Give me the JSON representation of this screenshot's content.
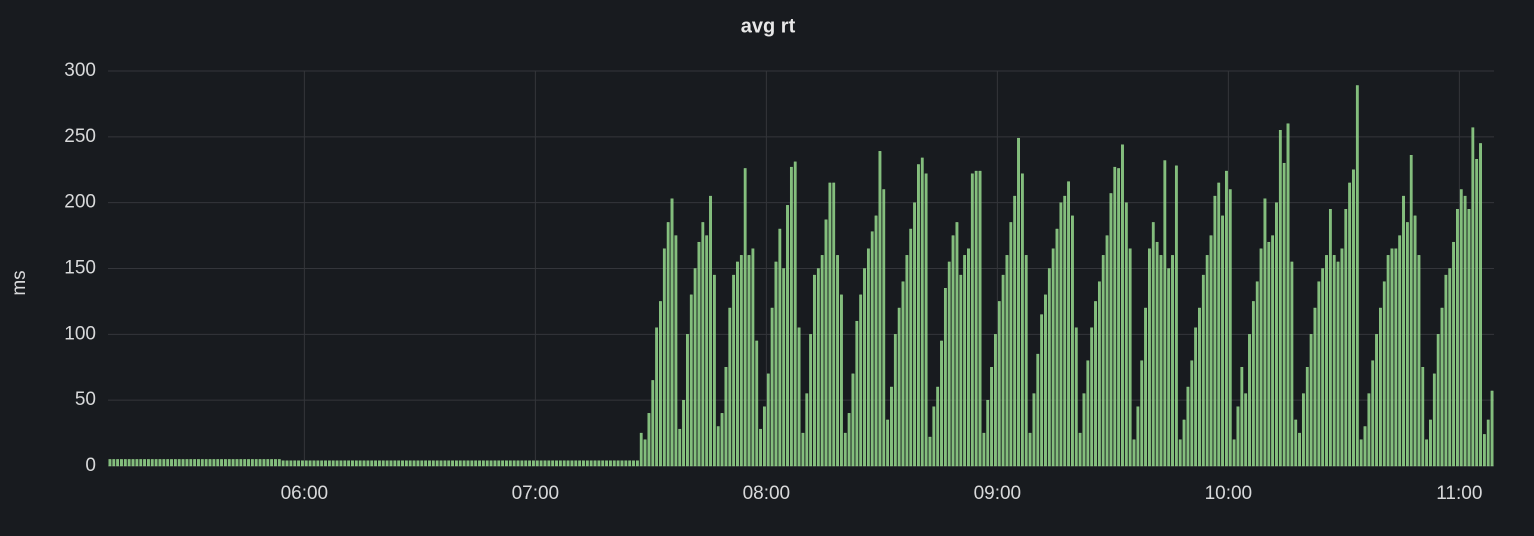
{
  "chart_data": {
    "type": "bar",
    "title": "avg rt",
    "y_label": "ms",
    "color": "#96d98d",
    "grid": true,
    "xlim": [
      "05:09",
      "11:09"
    ],
    "xticks": [
      "06:00",
      "07:00",
      "08:00",
      "09:00",
      "10:00",
      "11:00"
    ],
    "ylim": [
      0,
      300
    ],
    "yticks": [
      0,
      50,
      100,
      150,
      200,
      250,
      300
    ],
    "x": [
      "05:09",
      "05:10",
      "05:11",
      "05:12",
      "05:13",
      "05:14",
      "05:15",
      "05:16",
      "05:17",
      "05:18",
      "05:19",
      "05:20",
      "05:21",
      "05:22",
      "05:23",
      "05:24",
      "05:25",
      "05:26",
      "05:27",
      "05:28",
      "05:29",
      "05:30",
      "05:31",
      "05:32",
      "05:33",
      "05:34",
      "05:35",
      "05:36",
      "05:37",
      "05:38",
      "05:39",
      "05:40",
      "05:41",
      "05:42",
      "05:43",
      "05:44",
      "05:45",
      "05:46",
      "05:47",
      "05:48",
      "05:49",
      "05:50",
      "05:51",
      "05:52",
      "05:53",
      "05:54",
      "05:55",
      "05:56",
      "05:57",
      "05:58",
      "05:59",
      "06:00",
      "06:01",
      "06:02",
      "06:03",
      "06:04",
      "06:05",
      "06:06",
      "06:07",
      "06:08",
      "06:09",
      "06:10",
      "06:11",
      "06:12",
      "06:13",
      "06:14",
      "06:15",
      "06:16",
      "06:17",
      "06:18",
      "06:19",
      "06:20",
      "06:21",
      "06:22",
      "06:23",
      "06:24",
      "06:25",
      "06:26",
      "06:27",
      "06:28",
      "06:29",
      "06:30",
      "06:31",
      "06:32",
      "06:33",
      "06:34",
      "06:35",
      "06:36",
      "06:37",
      "06:38",
      "06:39",
      "06:40",
      "06:41",
      "06:42",
      "06:43",
      "06:44",
      "06:45",
      "06:46",
      "06:47",
      "06:48",
      "06:49",
      "06:50",
      "06:51",
      "06:52",
      "06:53",
      "06:54",
      "06:55",
      "06:56",
      "06:57",
      "06:58",
      "06:59",
      "07:00",
      "07:01",
      "07:02",
      "07:03",
      "07:04",
      "07:05",
      "07:06",
      "07:07",
      "07:08",
      "07:09",
      "07:10",
      "07:11",
      "07:12",
      "07:13",
      "07:14",
      "07:15",
      "07:16",
      "07:17",
      "07:18",
      "07:19",
      "07:20",
      "07:21",
      "07:22",
      "07:23",
      "07:24",
      "07:25",
      "07:26",
      "07:27",
      "07:28",
      "07:29",
      "07:30",
      "07:31",
      "07:32",
      "07:33",
      "07:34",
      "07:35",
      "07:36",
      "07:37",
      "07:38",
      "07:39",
      "07:40",
      "07:41",
      "07:42",
      "07:43",
      "07:44",
      "07:45",
      "07:46",
      "07:47",
      "07:48",
      "07:49",
      "07:50",
      "07:51",
      "07:52",
      "07:53",
      "07:54",
      "07:55",
      "07:56",
      "07:57",
      "07:58",
      "07:59",
      "08:00",
      "08:01",
      "08:02",
      "08:03",
      "08:04",
      "08:05",
      "08:06",
      "08:07",
      "08:08",
      "08:09",
      "08:10",
      "08:11",
      "08:12",
      "08:13",
      "08:14",
      "08:15",
      "08:16",
      "08:17",
      "08:18",
      "08:19",
      "08:20",
      "08:21",
      "08:22",
      "08:23",
      "08:24",
      "08:25",
      "08:26",
      "08:27",
      "08:28",
      "08:29",
      "08:30",
      "08:31",
      "08:32",
      "08:33",
      "08:34",
      "08:35",
      "08:36",
      "08:37",
      "08:38",
      "08:39",
      "08:40",
      "08:41",
      "08:42",
      "08:43",
      "08:44",
      "08:45",
      "08:46",
      "08:47",
      "08:48",
      "08:49",
      "08:50",
      "08:51",
      "08:52",
      "08:53",
      "08:54",
      "08:55",
      "08:56",
      "08:57",
      "08:58",
      "08:59",
      "09:00",
      "09:01",
      "09:02",
      "09:03",
      "09:04",
      "09:05",
      "09:06",
      "09:07",
      "09:08",
      "09:09",
      "09:10",
      "09:11",
      "09:12",
      "09:13",
      "09:14",
      "09:15",
      "09:16",
      "09:17",
      "09:18",
      "09:19",
      "09:20",
      "09:21",
      "09:22",
      "09:23",
      "09:24",
      "09:25",
      "09:26",
      "09:27",
      "09:28",
      "09:29",
      "09:30",
      "09:31",
      "09:32",
      "09:33",
      "09:34",
      "09:35",
      "09:36",
      "09:37",
      "09:38",
      "09:39",
      "09:40",
      "09:41",
      "09:42",
      "09:43",
      "09:44",
      "09:45",
      "09:46",
      "09:47",
      "09:48",
      "09:49",
      "09:50",
      "09:51",
      "09:52",
      "09:53",
      "09:54",
      "09:55",
      "09:56",
      "09:57",
      "09:58",
      "09:59",
      "10:00",
      "10:01",
      "10:02",
      "10:03",
      "10:04",
      "10:05",
      "10:06",
      "10:07",
      "10:08",
      "10:09",
      "10:10",
      "10:11",
      "10:12",
      "10:13",
      "10:14",
      "10:15",
      "10:16",
      "10:17",
      "10:18",
      "10:19",
      "10:20",
      "10:21",
      "10:22",
      "10:23",
      "10:24",
      "10:25",
      "10:26",
      "10:27",
      "10:28",
      "10:29",
      "10:30",
      "10:31",
      "10:32",
      "10:33",
      "10:34",
      "10:35",
      "10:36",
      "10:37",
      "10:38",
      "10:39",
      "10:40",
      "10:41",
      "10:42",
      "10:43",
      "10:44",
      "10:45",
      "10:46",
      "10:47",
      "10:48",
      "10:49",
      "10:50",
      "10:51",
      "10:52",
      "10:53",
      "10:54",
      "10:55",
      "10:56",
      "10:57",
      "10:58",
      "10:59",
      "11:00",
      "11:01",
      "11:02",
      "11:03",
      "11:04",
      "11:05",
      "11:06",
      "11:07",
      "11:08"
    ],
    "values": [
      5,
      5,
      5,
      5,
      5,
      5,
      5,
      5,
      5,
      5,
      5,
      5,
      5,
      5,
      5,
      5,
      5,
      5,
      5,
      5,
      5,
      5,
      5,
      5,
      5,
      5,
      5,
      5,
      5,
      5,
      5,
      5,
      5,
      5,
      5,
      5,
      5,
      5,
      5,
      5,
      5,
      5,
      5,
      5,
      5,
      4,
      4,
      4,
      4,
      4,
      4,
      4,
      4,
      4,
      4,
      4,
      4,
      4,
      4,
      4,
      4,
      4,
      4,
      4,
      4,
      4,
      4,
      4,
      4,
      4,
      4,
      4,
      4,
      4,
      4,
      4,
      4,
      4,
      4,
      4,
      4,
      4,
      4,
      4,
      4,
      4,
      4,
      4,
      4,
      4,
      4,
      4,
      4,
      4,
      4,
      4,
      4,
      4,
      4,
      4,
      4,
      4,
      4,
      4,
      4,
      4,
      4,
      4,
      4,
      4,
      4,
      4,
      4,
      4,
      4,
      4,
      4,
      4,
      4,
      4,
      4,
      4,
      4,
      4,
      4,
      4,
      4,
      4,
      4,
      4,
      4,
      4,
      4,
      4,
      4,
      4,
      4,
      4,
      25,
      20,
      40,
      65,
      105,
      125,
      165,
      185,
      203,
      175,
      28,
      50,
      100,
      130,
      150,
      170,
      185,
      175,
      205,
      145,
      30,
      40,
      75,
      120,
      145,
      155,
      160,
      226,
      160,
      165,
      95,
      28,
      45,
      70,
      120,
      155,
      180,
      150,
      198,
      227,
      231,
      105,
      25,
      55,
      100,
      145,
      150,
      160,
      187,
      215,
      215,
      160,
      130,
      25,
      40,
      70,
      110,
      130,
      150,
      165,
      178,
      190,
      239,
      210,
      35,
      60,
      100,
      120,
      140,
      160,
      180,
      200,
      229,
      234,
      222,
      22,
      45,
      60,
      95,
      135,
      155,
      175,
      185,
      145,
      160,
      165,
      222,
      224,
      224,
      25,
      50,
      75,
      100,
      125,
      145,
      160,
      185,
      205,
      249,
      222,
      160,
      25,
      55,
      85,
      115,
      130,
      150,
      165,
      180,
      200,
      205,
      216,
      190,
      105,
      25,
      55,
      80,
      105,
      125,
      140,
      160,
      175,
      207,
      227,
      226,
      244,
      200,
      165,
      20,
      45,
      80,
      120,
      165,
      185,
      170,
      160,
      232,
      150,
      160,
      228,
      20,
      35,
      60,
      80,
      105,
      120,
      145,
      160,
      175,
      205,
      215,
      190,
      224,
      210,
      20,
      45,
      75,
      55,
      100,
      125,
      140,
      165,
      203,
      170,
      175,
      200,
      255,
      230,
      260,
      155,
      35,
      25,
      55,
      75,
      100,
      120,
      140,
      150,
      160,
      195,
      160,
      155,
      165,
      195,
      215,
      225,
      289,
      20,
      30,
      55,
      80,
      100,
      120,
      140,
      160,
      165,
      165,
      175,
      205,
      185,
      236,
      190,
      160,
      75,
      20,
      35,
      70,
      100,
      120,
      145,
      150,
      170,
      195,
      210,
      205,
      195,
      257,
      233,
      245,
      24,
      35,
      57
    ]
  }
}
